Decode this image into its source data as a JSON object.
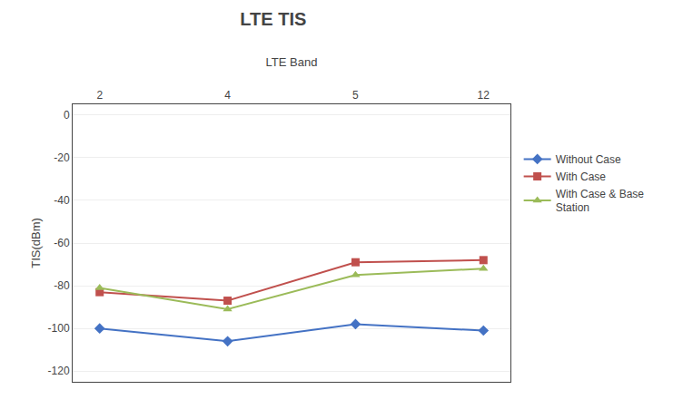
{
  "chart_data": {
    "type": "line",
    "title": "LTE TIS",
    "xlabel": "LTE Band",
    "ylabel": "TIS(dBm)",
    "categories": [
      "2",
      "4",
      "5",
      "12"
    ],
    "series": [
      {
        "name": "Without Case",
        "color": "#4472C4",
        "marker": "diamond",
        "values": [
          -100,
          -106,
          -98,
          -101
        ]
      },
      {
        "name": "With Case",
        "color": "#C0504D",
        "marker": "square",
        "values": [
          -83,
          -87,
          -69,
          -68
        ]
      },
      {
        "name": "With Case & Base\nStation",
        "color": "#9BBB59",
        "marker": "triangle-up",
        "values": [
          -81,
          -91,
          -75,
          -72
        ]
      }
    ],
    "ylim": [
      -125,
      5
    ],
    "yticks": [
      -120,
      -100,
      -80,
      -60,
      -40,
      -20,
      0
    ],
    "grid": true,
    "legend": "right"
  }
}
